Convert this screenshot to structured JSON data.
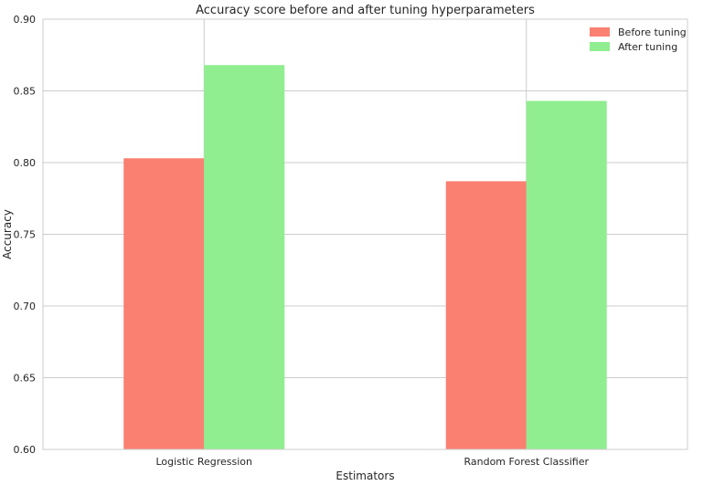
{
  "chart_data": {
    "type": "bar",
    "title": "Accuracy score before and after tuning hyperparameters",
    "xlabel": "Estimators",
    "ylabel": "Accuracy",
    "categories": [
      "Logistic Regression",
      "Random Forest Classifier"
    ],
    "series": [
      {
        "name": "Before tuning",
        "color": "#fa8072",
        "values": [
          0.803,
          0.787
        ]
      },
      {
        "name": "After tuning",
        "color": "#90ee90",
        "values": [
          0.868,
          0.843
        ]
      }
    ],
    "ylim": [
      0.6,
      0.9
    ],
    "yticks": [
      "0.60",
      "0.65",
      "0.70",
      "0.75",
      "0.80",
      "0.85",
      "0.90"
    ],
    "grid": true,
    "legend": "top-right"
  }
}
